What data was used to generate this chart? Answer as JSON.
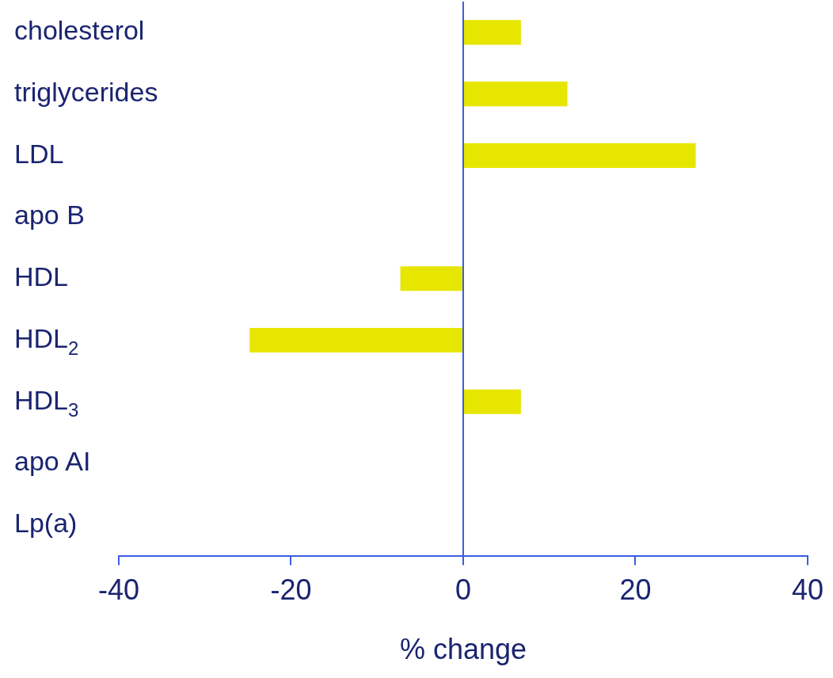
{
  "chart_data": {
    "type": "bar",
    "orientation": "horizontal",
    "xlabel": "% change",
    "categories": [
      "cholesterol",
      "triglycerides",
      "LDL",
      "apo B",
      "HDL",
      "HDL$_{2}$",
      "HDL$_{3}$",
      "apo AI",
      "Lp(a)"
    ],
    "values": [
      6.7,
      12.1,
      27.0,
      null,
      -7.3,
      -24.8,
      6.7,
      null,
      null
    ],
    "color": "#e6e600",
    "ref_lines": [
      {
        "axis": "x",
        "value": 0,
        "color": "#3a5ee0"
      }
    ],
    "xlim": [
      -40,
      40
    ],
    "xticks": [
      -40,
      -20,
      0,
      20,
      40
    ],
    "grid": false,
    "legend": false
  }
}
